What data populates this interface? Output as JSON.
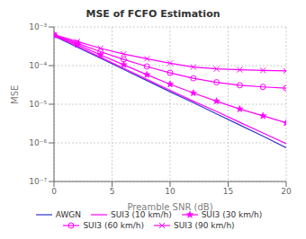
{
  "chart_data": {
    "type": "line",
    "title": "MSE of FCFO Estimation",
    "xlabel": "Preamble SNR (dB)",
    "ylabel": "MSE",
    "x": [
      0,
      2,
      4,
      6,
      8,
      10,
      12,
      14,
      16,
      18,
      20
    ],
    "series": [
      {
        "name": "AWGN",
        "color": "#3333cc",
        "marker": "none",
        "line_style": "solid",
        "values": [
          0.00058,
          0.0003,
          0.000155,
          8e-05,
          4.1e-05,
          2.1e-05,
          1.1e-05,
          5.6e-06,
          2.9e-06,
          1.5e-06,
          7.5e-07
        ]
      },
      {
        "name": "SUI3 (10 km/h)",
        "color": "#ff00ff",
        "marker": "none",
        "line_style": "solid",
        "values": [
          0.0006,
          0.00032,
          0.000165,
          8.5e-05,
          4.4e-05,
          2.3e-05,
          1.2e-05,
          6.5e-06,
          3.4e-06,
          1.8e-06,
          9.5e-07
        ]
      },
      {
        "name": "SUI3 (30 km/h)",
        "color": "#ff00ff",
        "marker": "star",
        "line_style": "solid",
        "values": [
          0.00061,
          0.00035,
          0.00019,
          0.000105,
          5.8e-05,
          3.3e-05,
          1.95e-05,
          1.2e-05,
          7.5e-06,
          5e-06,
          3.3e-06
        ]
      },
      {
        "name": "SUI3 (60 km/h)",
        "color": "#ff00ff",
        "marker": "circle",
        "line_style": "solid",
        "values": [
          0.00062,
          0.00038,
          0.00023,
          0.000145,
          9.5e-05,
          6.5e-05,
          4.7e-05,
          3.7e-05,
          3.1e-05,
          2.8e-05,
          2.6e-05
        ]
      },
      {
        "name": "SUI3 (90 km/h)",
        "color": "#ff00ff",
        "marker": "x",
        "line_style": "solid",
        "values": [
          0.00063,
          0.00042,
          0.00028,
          0.0002,
          0.00015,
          0.000115,
          9.2e-05,
          8.2e-05,
          7.8e-05,
          7.5e-05,
          7.3e-05
        ]
      }
    ],
    "xlim": [
      0,
      20
    ],
    "ylim": [
      1e-07,
      0.001
    ],
    "xticks": [
      0,
      5,
      10,
      15,
      20
    ],
    "yticks": [
      {
        "value": 1e-07,
        "label": "10⁻⁷"
      },
      {
        "value": 1e-06,
        "label": "10⁻⁶"
      },
      {
        "value": 1e-05,
        "label": "10⁻⁵"
      },
      {
        "value": 0.0001,
        "label": "10⁻⁴"
      },
      {
        "value": 0.001,
        "label": "10⁻³"
      }
    ],
    "log": "y",
    "grid": true,
    "legend": "bottom"
  }
}
